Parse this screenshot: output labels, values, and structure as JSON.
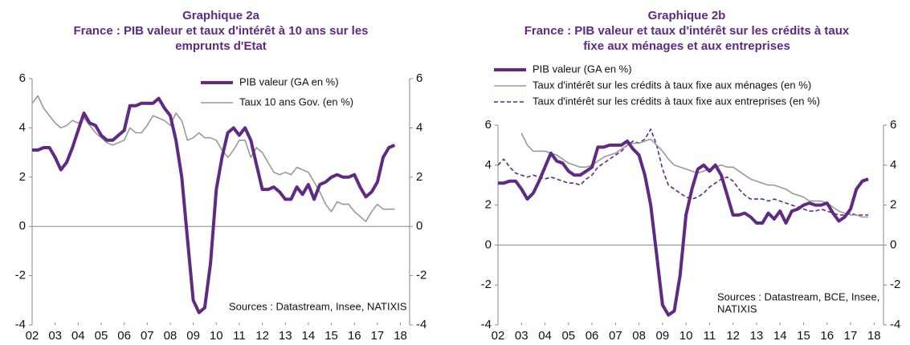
{
  "chart_data": [
    {
      "type": "line",
      "title": "Graphique 2a",
      "subtitle": "France : PIB valeur et taux d'intérêt à 10 ans sur les emprunts d'Etat",
      "annotation": [
        "Sources : Datastream, Insee, NATIXIS"
      ],
      "x": [
        2002,
        2002.25,
        2002.5,
        2002.75,
        2003,
        2003.25,
        2003.5,
        2003.75,
        2004,
        2004.25,
        2004.5,
        2004.75,
        2005,
        2005.25,
        2005.5,
        2005.75,
        2006,
        2006.25,
        2006.5,
        2006.75,
        2007,
        2007.25,
        2007.5,
        2007.75,
        2008,
        2008.25,
        2008.5,
        2008.75,
        2009,
        2009.25,
        2009.5,
        2009.75,
        2010,
        2010.25,
        2010.5,
        2010.75,
        2011,
        2011.25,
        2011.5,
        2011.75,
        2012,
        2012.25,
        2012.5,
        2012.75,
        2013,
        2013.25,
        2013.5,
        2013.75,
        2014,
        2014.25,
        2014.5,
        2014.75,
        2015,
        2015.25,
        2015.5,
        2015.75,
        2016,
        2016.25,
        2016.5,
        2016.75,
        2017,
        2017.25,
        2017.5,
        2017.75
      ],
      "series": [
        {
          "name": "PIB valeur (GA en %)",
          "color": "#5f2a84",
          "style": "thick",
          "values": [
            3.1,
            3.1,
            3.2,
            3.2,
            2.8,
            2.3,
            2.6,
            3.2,
            3.9,
            4.6,
            4.2,
            4.1,
            3.7,
            3.5,
            3.5,
            3.7,
            3.9,
            4.9,
            4.9,
            5.0,
            5.0,
            5.0,
            5.2,
            4.8,
            4.5,
            3.5,
            2.0,
            -0.5,
            -3.0,
            -3.5,
            -3.3,
            -1.5,
            1.5,
            2.8,
            3.8,
            4.0,
            3.7,
            4.0,
            3.5,
            2.5,
            1.5,
            1.5,
            1.6,
            1.4,
            1.1,
            1.1,
            1.6,
            1.3,
            1.7,
            1.1,
            1.7,
            1.8,
            2.0,
            2.1,
            2.0,
            2.0,
            2.1,
            1.6,
            1.2,
            1.4,
            1.8,
            2.8,
            3.2,
            3.3
          ]
        },
        {
          "name": "Taux 10 ans Gov. (en %)",
          "color": "#999999",
          "style": "thin",
          "values": [
            5.0,
            5.3,
            4.8,
            4.5,
            4.2,
            4.0,
            4.1,
            4.3,
            4.2,
            4.4,
            4.1,
            3.8,
            3.6,
            3.4,
            3.3,
            3.4,
            3.5,
            4.0,
            3.8,
            3.8,
            4.1,
            4.5,
            4.4,
            4.3,
            4.1,
            4.6,
            4.3,
            3.5,
            3.6,
            3.8,
            3.6,
            3.6,
            3.5,
            3.1,
            2.8,
            3.1,
            3.5,
            3.5,
            2.8,
            3.2,
            3.0,
            2.6,
            2.2,
            2.1,
            2.2,
            2.1,
            2.4,
            2.3,
            2.2,
            1.8,
            1.4,
            0.9,
            0.6,
            1.0,
            0.9,
            0.9,
            0.6,
            0.4,
            0.2,
            0.6,
            0.9,
            0.7,
            0.7,
            0.7
          ]
        }
      ],
      "xlim": [
        2002,
        2018.4
      ],
      "xticks": [
        {
          "value": 2002,
          "label": "02"
        },
        {
          "value": 2003,
          "label": "03"
        },
        {
          "value": 2004,
          "label": "04"
        },
        {
          "value": 2005,
          "label": "05"
        },
        {
          "value": 2006,
          "label": "06"
        },
        {
          "value": 2007,
          "label": "07"
        },
        {
          "value": 2008,
          "label": "08"
        },
        {
          "value": 2009,
          "label": "09"
        },
        {
          "value": 2010,
          "label": "10"
        },
        {
          "value": 2011,
          "label": "11"
        },
        {
          "value": 2012,
          "label": "12"
        },
        {
          "value": 2013,
          "label": "13"
        },
        {
          "value": 2014,
          "label": "14"
        },
        {
          "value": 2015,
          "label": "15"
        },
        {
          "value": 2016,
          "label": "16"
        },
        {
          "value": 2017,
          "label": "17"
        },
        {
          "value": 2018,
          "label": "18"
        }
      ],
      "ylim": [
        -4,
        6
      ],
      "yticks": [
        -4,
        -2,
        0,
        2,
        4,
        6
      ],
      "y2lim": [
        -4,
        6
      ],
      "y2ticks": [
        -4,
        -2,
        0,
        2,
        4,
        6
      ],
      "legend": "top-right"
    },
    {
      "type": "line",
      "title": "Graphique 2b",
      "subtitle": "France : PIB valeur et taux d'intérêt sur les crédits à taux fixe aux ménages et aux entreprises",
      "annotation": [
        "Sources : Datastream, BCE, Insee,",
        "NATIXIS"
      ],
      "x": [
        2002,
        2002.25,
        2002.5,
        2002.75,
        2003,
        2003.25,
        2003.5,
        2003.75,
        2004,
        2004.25,
        2004.5,
        2004.75,
        2005,
        2005.25,
        2005.5,
        2005.75,
        2006,
        2006.25,
        2006.5,
        2006.75,
        2007,
        2007.25,
        2007.5,
        2007.75,
        2008,
        2008.25,
        2008.5,
        2008.75,
        2009,
        2009.25,
        2009.5,
        2009.75,
        2010,
        2010.25,
        2010.5,
        2010.75,
        2011,
        2011.25,
        2011.5,
        2011.75,
        2012,
        2012.25,
        2012.5,
        2012.75,
        2013,
        2013.25,
        2013.5,
        2013.75,
        2014,
        2014.25,
        2014.5,
        2014.75,
        2015,
        2015.25,
        2015.5,
        2015.75,
        2016,
        2016.25,
        2016.5,
        2016.75,
        2017,
        2017.25,
        2017.5,
        2017.75
      ],
      "series": [
        {
          "name": "PIB valeur (GA en %)",
          "color": "#5f2a84",
          "style": "thick",
          "values": [
            3.1,
            3.1,
            3.2,
            3.2,
            2.8,
            2.3,
            2.6,
            3.2,
            3.9,
            4.6,
            4.2,
            4.1,
            3.7,
            3.5,
            3.5,
            3.7,
            3.9,
            4.9,
            4.9,
            5.0,
            5.0,
            5.0,
            5.2,
            4.8,
            4.5,
            3.5,
            2.0,
            -0.5,
            -3.0,
            -3.5,
            -3.3,
            -1.5,
            1.5,
            2.8,
            3.8,
            4.0,
            3.7,
            4.0,
            3.5,
            2.5,
            1.5,
            1.5,
            1.6,
            1.4,
            1.1,
            1.1,
            1.6,
            1.3,
            1.7,
            1.1,
            1.7,
            1.8,
            2.0,
            2.1,
            2.0,
            2.0,
            2.1,
            1.6,
            1.2,
            1.4,
            1.8,
            2.8,
            3.2,
            3.3
          ]
        },
        {
          "name": "Taux d'intérêt sur les crédits à taux fixe aux ménages (en %)",
          "color": "#999999",
          "style": "thin",
          "values": [
            null,
            null,
            null,
            null,
            5.6,
            5.0,
            4.7,
            4.7,
            4.7,
            4.6,
            4.5,
            4.3,
            4.1,
            4.0,
            3.9,
            3.9,
            4.0,
            4.2,
            4.4,
            4.5,
            4.6,
            4.8,
            5.0,
            5.1,
            5.1,
            5.2,
            5.3,
            5.0,
            4.7,
            4.3,
            4.0,
            3.9,
            3.8,
            3.7,
            3.6,
            3.7,
            3.8,
            3.9,
            4.0,
            3.9,
            3.9,
            3.7,
            3.5,
            3.3,
            3.2,
            3.1,
            3.0,
            3.0,
            2.9,
            2.8,
            2.6,
            2.5,
            2.4,
            2.2,
            2.2,
            2.2,
            2.1,
            1.9,
            1.7,
            1.6,
            1.5,
            1.5,
            1.4,
            1.4
          ]
        },
        {
          "name": "Taux d'intérêt sur les crédits à taux fixe aux entreprises (en %)",
          "color": "#5f2a84",
          "style": "dashed",
          "values": [
            4.0,
            4.3,
            3.9,
            3.6,
            3.5,
            3.4,
            3.5,
            3.4,
            3.3,
            3.4,
            3.3,
            3.2,
            3.1,
            3.1,
            3.0,
            3.3,
            3.5,
            3.9,
            4.1,
            4.3,
            4.5,
            4.7,
            5.0,
            5.2,
            5.1,
            5.3,
            5.8,
            5.0,
            3.8,
            3.0,
            2.8,
            2.6,
            2.4,
            2.3,
            2.4,
            2.6,
            2.9,
            3.1,
            3.3,
            3.4,
            3.2,
            2.8,
            2.5,
            2.3,
            2.3,
            2.3,
            2.2,
            2.3,
            2.2,
            2.1,
            2.0,
            1.9,
            1.8,
            1.7,
            1.7,
            1.8,
            1.7,
            1.6,
            1.5,
            1.5,
            1.6,
            1.5,
            1.5,
            1.5
          ]
        }
      ],
      "xlim": [
        2002,
        2018.4
      ],
      "xticks": [
        {
          "value": 2002,
          "label": "02"
        },
        {
          "value": 2003,
          "label": "03"
        },
        {
          "value": 2004,
          "label": "04"
        },
        {
          "value": 2005,
          "label": "05"
        },
        {
          "value": 2006,
          "label": "06"
        },
        {
          "value": 2007,
          "label": "07"
        },
        {
          "value": 2008,
          "label": "08"
        },
        {
          "value": 2009,
          "label": "09"
        },
        {
          "value": 2010,
          "label": "10"
        },
        {
          "value": 2011,
          "label": "11"
        },
        {
          "value": 2012,
          "label": "12"
        },
        {
          "value": 2013,
          "label": "13"
        },
        {
          "value": 2014,
          "label": "14"
        },
        {
          "value": 2015,
          "label": "15"
        },
        {
          "value": 2016,
          "label": "16"
        },
        {
          "value": 2017,
          "label": "17"
        },
        {
          "value": 2018,
          "label": "18"
        }
      ],
      "ylim": [
        -4,
        6
      ],
      "yticks": [
        -4,
        -2,
        0,
        2,
        4,
        6
      ],
      "y2lim": [
        -4,
        6
      ],
      "y2ticks": [
        -4,
        -2,
        0,
        2,
        4,
        6
      ],
      "legend": "top-left"
    }
  ]
}
